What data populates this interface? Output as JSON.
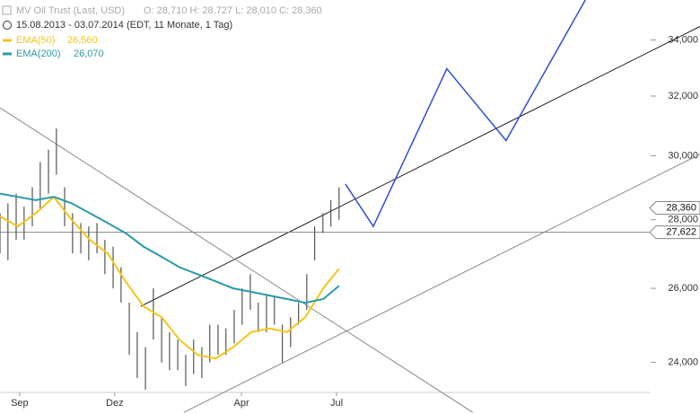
{
  "chart_data": {
    "type": "stock",
    "header": {
      "instrument": "MV Oil Trust (Last, USD)",
      "ohlc": "O: 28,710  H: 28,727  L: 28,010  C: 28,360",
      "range": "15.08.2013 - 03.07.2014 (EDT, 11 Monate, 1 Tag)"
    },
    "log_scale": true,
    "xlim": [
      -0.62,
      21.47
    ],
    "ylim": [
      22.7,
      35.5
    ],
    "xticks": [
      {
        "value": 0,
        "label": "Sep"
      },
      {
        "value": 3,
        "label": "Dez"
      },
      {
        "value": 7,
        "label": "Apr"
      },
      {
        "value": 10,
        "label": "Jul"
      }
    ],
    "yticks": [
      {
        "value": 24,
        "label": "24,000"
      },
      {
        "value": 26,
        "label": "26,000"
      },
      {
        "value": 28,
        "label": "28,000"
      },
      {
        "value": 30,
        "label": "30,000"
      },
      {
        "value": 32,
        "label": "32,000"
      },
      {
        "value": 34,
        "label": "34,000"
      }
    ],
    "price": {
      "color": "#555555",
      "x": [
        -0.62,
        -0.37,
        -0.11,
        0.14,
        0.4,
        0.65,
        0.91,
        1.16,
        1.42,
        1.67,
        1.93,
        2.18,
        2.44,
        2.69,
        2.95,
        3.2,
        3.46,
        3.71,
        3.97,
        4.22,
        4.48,
        4.73,
        4.99,
        5.24,
        5.49,
        5.75,
        6.0,
        6.26,
        6.51,
        6.77,
        7.02,
        7.28,
        7.53,
        7.79,
        8.04,
        8.29,
        8.55,
        8.8,
        9.06,
        9.31,
        9.57,
        9.82,
        10.08
      ],
      "high": [
        28.2,
        28.5,
        28.8,
        28.4,
        29.0,
        29.8,
        30.2,
        30.9,
        29.0,
        28.2,
        27.9,
        27.8,
        27.9,
        27.4,
        27.2,
        26.6,
        25.6,
        24.8,
        24.4,
        26.0,
        25.2,
        24.8,
        24.6,
        24.2,
        24.6,
        24.4,
        25.0,
        25.0,
        24.9,
        25.4,
        26.0,
        26.4,
        25.6,
        25.8,
        25.8,
        25.0,
        25.2,
        25.6,
        26.4,
        27.8,
        28.2,
        28.6,
        29.0
      ],
      "low": [
        27.0,
        26.8,
        27.4,
        27.4,
        27.8,
        28.3,
        28.8,
        29.4,
        27.8,
        27.0,
        27.0,
        26.8,
        27.0,
        26.4,
        26.0,
        25.6,
        24.2,
        23.6,
        23.3,
        24.6,
        24.0,
        23.8,
        23.8,
        23.4,
        23.7,
        23.6,
        24.0,
        24.2,
        24.2,
        24.5,
        25.0,
        25.4,
        24.8,
        24.8,
        25.0,
        24.0,
        24.4,
        25.0,
        25.4,
        26.8,
        27.6,
        27.8,
        28.0
      ]
    },
    "series": [
      {
        "name": "EMA(50)",
        "legend_value": "26,560",
        "color": "#f5c518",
        "x": [
          -0.62,
          -0.06,
          0.51,
          1.08,
          1.64,
          2.21,
          2.78,
          3.34,
          3.91,
          4.48,
          5.04,
          5.61,
          6.18,
          6.74,
          7.31,
          7.88,
          8.44,
          9.01,
          9.58,
          10.08
        ],
        "values": [
          28.1,
          27.8,
          28.2,
          28.7,
          28.0,
          27.4,
          27.0,
          26.2,
          25.5,
          25.2,
          24.6,
          24.2,
          24.1,
          24.4,
          24.8,
          24.9,
          24.8,
          25.2,
          26.0,
          26.56
        ]
      },
      {
        "name": "EMA(200)",
        "legend_value": "26,070",
        "color": "#2a9aa8",
        "x": [
          -0.62,
          -0.06,
          0.51,
          1.08,
          1.64,
          2.21,
          2.78,
          3.34,
          3.91,
          4.48,
          5.04,
          5.61,
          6.18,
          6.74,
          7.31,
          7.88,
          8.44,
          9.01,
          9.58,
          10.08
        ],
        "values": [
          28.8,
          28.7,
          28.6,
          28.7,
          28.5,
          28.2,
          27.9,
          27.6,
          27.2,
          26.9,
          26.6,
          26.4,
          26.2,
          26.0,
          25.9,
          25.8,
          25.7,
          25.6,
          25.7,
          26.07
        ]
      }
    ],
    "trendlines": [
      {
        "color": "#111111",
        "x": [
          3.82,
          21.47
        ],
        "values": [
          25.5,
          34.5
        ]
      },
      {
        "color": "#888888",
        "x": [
          -0.62,
          14.3
        ],
        "values": [
          31.6,
          22.74
        ]
      },
      {
        "color": "#888888",
        "x": [
          5.18,
          21.47
        ],
        "values": [
          22.74,
          30.05
        ]
      }
    ],
    "projection": {
      "color": "#2f4fd6",
      "x": [
        10.28,
        11.16,
        13.48,
        15.35,
        17.85
      ],
      "values": [
        29.1,
        27.8,
        32.96,
        30.5,
        35.5
      ]
    },
    "level": {
      "value": 27.622,
      "label": "27,622",
      "color": "#888888"
    },
    "last_price": {
      "value": 28.36,
      "label": "28,360"
    }
  }
}
